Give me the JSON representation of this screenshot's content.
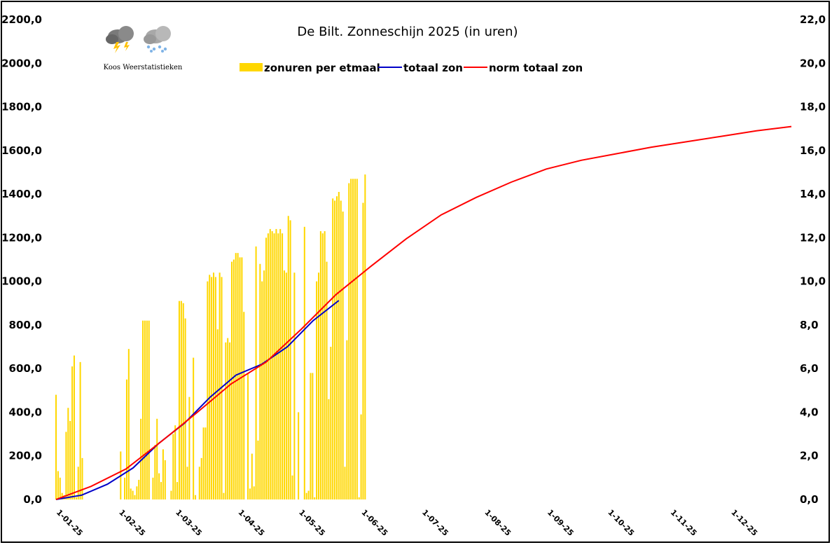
{
  "chart_data": {
    "type": "bar",
    "title": "De Bilt. Zonneschijn 2025 (in uren)",
    "logo_caption": "Koos Weerstatistieken",
    "xlabel": "",
    "ylabel": "",
    "left_axis": {
      "ylim": [
        0,
        2200
      ],
      "ticks": [
        "0,0",
        "200,0",
        "400,0",
        "600,0",
        "800,0",
        "1000,0",
        "1200,0",
        "1400,0",
        "1600,0",
        "1800,0",
        "2000,0",
        "2200,0"
      ],
      "series": [
        "totaal zon",
        "norm totaal zon"
      ]
    },
    "right_axis": {
      "ylim": [
        0,
        22
      ],
      "ticks": [
        "0,0",
        "2,0",
        "4,0",
        "6,0",
        "8,0",
        "10,0",
        "12,0",
        "14,0",
        "16,0",
        "18,0",
        "20,0",
        "22,0"
      ],
      "series": [
        "zonuren per etmaal"
      ]
    },
    "x_ticks": [
      "1-01-25",
      "1-02-25",
      "1-03-25",
      "1-04-25",
      "1-05-25",
      "1-06-25",
      "1-07-25",
      "1-08-25",
      "1-09-25",
      "1-10-25",
      "1-11-25",
      "1-12-25"
    ],
    "x_range_days": [
      1,
      365
    ],
    "grid": false,
    "legend_position": "top-center",
    "series": [
      {
        "name": "zonuren per etmaal",
        "type": "bar",
        "axis": "right",
        "color": "#FFD700",
        "values": [
          4.8,
          1.3,
          1.0,
          0.3,
          0.2,
          3.1,
          4.2,
          3.6,
          6.1,
          6.6,
          0.1,
          1.5,
          6.3,
          1.9,
          0,
          0,
          0,
          0,
          0,
          0,
          0,
          0,
          0,
          0,
          0,
          0,
          0,
          0,
          0,
          0,
          0,
          0,
          2.2,
          0,
          1.0,
          5.5,
          6.9,
          0.5,
          0.4,
          0.2,
          0.6,
          0.9,
          3.7,
          8.2,
          8.2,
          8.2,
          8.2,
          0,
          1.0,
          2.5,
          3.7,
          1.2,
          0.8,
          2.3,
          1.8,
          0,
          0,
          0.4,
          3.0,
          3.4,
          0.8,
          9.1,
          9.1,
          9.0,
          8.3,
          1.5,
          4.7,
          0,
          6.5,
          0.2,
          0,
          1.5,
          1.9,
          3.3,
          3.3,
          10.0,
          10.3,
          10.2,
          10.4,
          10.2,
          7.8,
          10.4,
          10.2,
          0.3,
          7.2,
          7.4,
          7.2,
          10.9,
          11.0,
          11.3,
          11.3,
          11.1,
          11.1,
          8.6,
          0,
          5.8,
          0.5,
          2.1,
          0.6,
          11.6,
          2.7,
          10.8,
          10.0,
          10.5,
          12.0,
          12.2,
          12.4,
          12.3,
          12.2,
          12.4,
          12.2,
          12.4,
          12.2,
          10.5,
          10.4,
          13.0,
          12.8,
          1.1,
          10.4,
          0,
          4.0,
          0,
          0,
          12.5,
          0.3,
          0.4,
          5.8,
          5.8,
          0.1,
          10.0,
          10.4,
          12.3,
          12.2,
          12.3,
          10.9,
          4.6,
          7.0,
          13.8,
          13.7,
          13.9,
          14.1,
          13.7,
          13.2,
          1.5,
          7.3,
          14.5,
          14.7,
          14.7,
          14.7,
          14.7,
          0.1,
          3.9,
          13.6,
          14.9
        ]
      },
      {
        "name": "totaal zon",
        "type": "line",
        "axis": "left",
        "color": "#0000C8",
        "values": [
          0,
          20,
          70,
          145,
          258,
          350,
          470,
          570,
          620,
          700,
          820,
          912
        ]
      },
      {
        "name": "norm totaal zon",
        "type": "line",
        "axis": "left",
        "color": "#FF0000",
        "values": [
          0,
          60,
          140,
          265,
          395,
          530,
          630,
          780,
          940,
          1070,
          1195,
          1305,
          1385,
          1455,
          1515,
          1555,
          1585,
          1615,
          1640,
          1665,
          1690,
          1710
        ]
      }
    ]
  }
}
